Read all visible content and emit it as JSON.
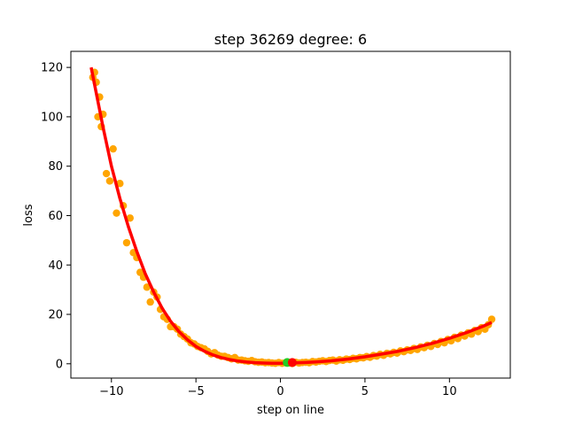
{
  "chart_data": {
    "type": "scatter",
    "title": "step 36269   degree: 6",
    "xlabel": "step on line",
    "ylabel": "loss",
    "xlim": [
      -12.4,
      13.6
    ],
    "ylim": [
      -5.8,
      126.5
    ],
    "xticks": [
      -10,
      -5,
      0,
      5,
      10
    ],
    "xtick_labels": [
      "−10",
      "−5",
      "0",
      "5",
      "10"
    ],
    "yticks": [
      0,
      20,
      40,
      60,
      80,
      100,
      120
    ],
    "ytick_labels": [
      "0",
      "20",
      "40",
      "60",
      "80",
      "100",
      "120"
    ],
    "grid": false,
    "legend": "none",
    "colors": {
      "points": "#ffa500",
      "fit": "#ff0000",
      "green_marker": "#22cc22",
      "red_marker": "#ff0000"
    },
    "fit_curve": {
      "x": [
        -11.2,
        -10.5,
        -10,
        -9.5,
        -9,
        -8.5,
        -8,
        -7.5,
        -7,
        -6.5,
        -6,
        -5.5,
        -5,
        -4.5,
        -4,
        -3.5,
        -3,
        -2.5,
        -2,
        -1.5,
        -1,
        -0.5,
        0,
        0.5,
        1,
        1.5,
        2,
        3,
        4,
        5,
        6,
        7,
        8,
        9,
        10,
        11,
        12,
        12.5
      ],
      "y": [
        120,
        96,
        80,
        67,
        55.5,
        45.5,
        36.5,
        29,
        22.5,
        17.2,
        13,
        9.7,
        7,
        5.1,
        3.6,
        2.5,
        1.7,
        1.1,
        0.7,
        0.45,
        0.3,
        0.22,
        0.2,
        0.25,
        0.35,
        0.5,
        0.7,
        1.2,
        1.9,
        2.8,
        3.9,
        5.1,
        6.6,
        8.3,
        10.3,
        12.6,
        15.2,
        16.7
      ]
    },
    "scatter_points": {
      "x": [
        -11.1,
        -11.0,
        -10.9,
        -10.8,
        -10.7,
        -10.6,
        -10.5,
        -10.3,
        -10.1,
        -9.9,
        -9.7,
        -9.5,
        -9.3,
        -9.1,
        -8.9,
        -8.7,
        -8.5,
        -8.3,
        -8.1,
        -7.9,
        -7.7,
        -7.5,
        -7.3,
        -7.1,
        -6.9,
        -6.7,
        -6.5,
        -6.3,
        -6.1,
        -5.9,
        -5.7,
        -5.5,
        -5.3,
        -5.1,
        -4.9,
        -4.7,
        -4.5,
        -4.3,
        -4.1,
        -3.9,
        -3.7,
        -3.5,
        -3.3,
        -3.1,
        -2.9,
        -2.7,
        -2.5,
        -2.3,
        -2.1,
        -1.9,
        -1.7,
        -1.5,
        -1.3,
        -1.1,
        -0.9,
        -0.7,
        -0.5,
        -0.3,
        -0.1,
        0.1,
        0.3,
        0.5,
        0.7,
        0.9,
        1.1,
        1.3,
        1.5,
        1.7,
        1.9,
        2.1,
        2.3,
        2.5,
        2.7,
        2.9,
        3.1,
        3.3,
        3.5,
        3.7,
        3.9,
        4.1,
        4.3,
        4.5,
        4.7,
        4.9,
        5.1,
        5.3,
        5.5,
        5.7,
        5.9,
        6.1,
        6.3,
        6.5,
        6.7,
        6.9,
        7.1,
        7.3,
        7.5,
        7.7,
        7.9,
        8.1,
        8.3,
        8.5,
        8.7,
        8.9,
        9.1,
        9.3,
        9.5,
        9.7,
        9.9,
        10.1,
        10.3,
        10.5,
        10.7,
        10.9,
        11.1,
        11.3,
        11.5,
        11.7,
        11.9,
        12.1,
        12.3,
        12.5
      ],
      "y": [
        116,
        118,
        114,
        100,
        108,
        96,
        101,
        77,
        74,
        87,
        61,
        73,
        64,
        49,
        59,
        45,
        43,
        37,
        35,
        31,
        25,
        29,
        27,
        22,
        19,
        18,
        15,
        15,
        14,
        12,
        11,
        10,
        8.5,
        8,
        7,
        6.5,
        6,
        5,
        4,
        4.5,
        3.5,
        3,
        3,
        2.5,
        2,
        2.5,
        1.5,
        1.5,
        1.2,
        1,
        1.3,
        0.8,
        0.6,
        0.7,
        0.4,
        0.5,
        0.3,
        0.2,
        0.5,
        0.2,
        0.4,
        0.3,
        0.1,
        0.6,
        0.3,
        0.5,
        0.6,
        0.4,
        0.9,
        0.7,
        1,
        1.2,
        0.9,
        1.3,
        1.5,
        1.1,
        1.6,
        1.4,
        1.9,
        1.7,
        2.2,
        2,
        2.5,
        2.4,
        2.9,
        2.6,
        3.3,
        3.1,
        3.8,
        3.4,
        4.2,
        4,
        4.6,
        4.3,
        5.2,
        4.9,
        5.6,
        5.4,
        6.2,
        5.8,
        6.8,
        6.5,
        7.5,
        7,
        8.2,
        7.8,
        9,
        8.5,
        9.8,
        9.3,
        10.7,
        10.2,
        11.6,
        11.2,
        12.5,
        12,
        13.5,
        13,
        14.6,
        14,
        15.8,
        18
      ]
    },
    "markers": [
      {
        "name": "green",
        "x": 0.4,
        "y": 0.5
      },
      {
        "name": "red",
        "x": 0.7,
        "y": 0.5
      }
    ]
  }
}
